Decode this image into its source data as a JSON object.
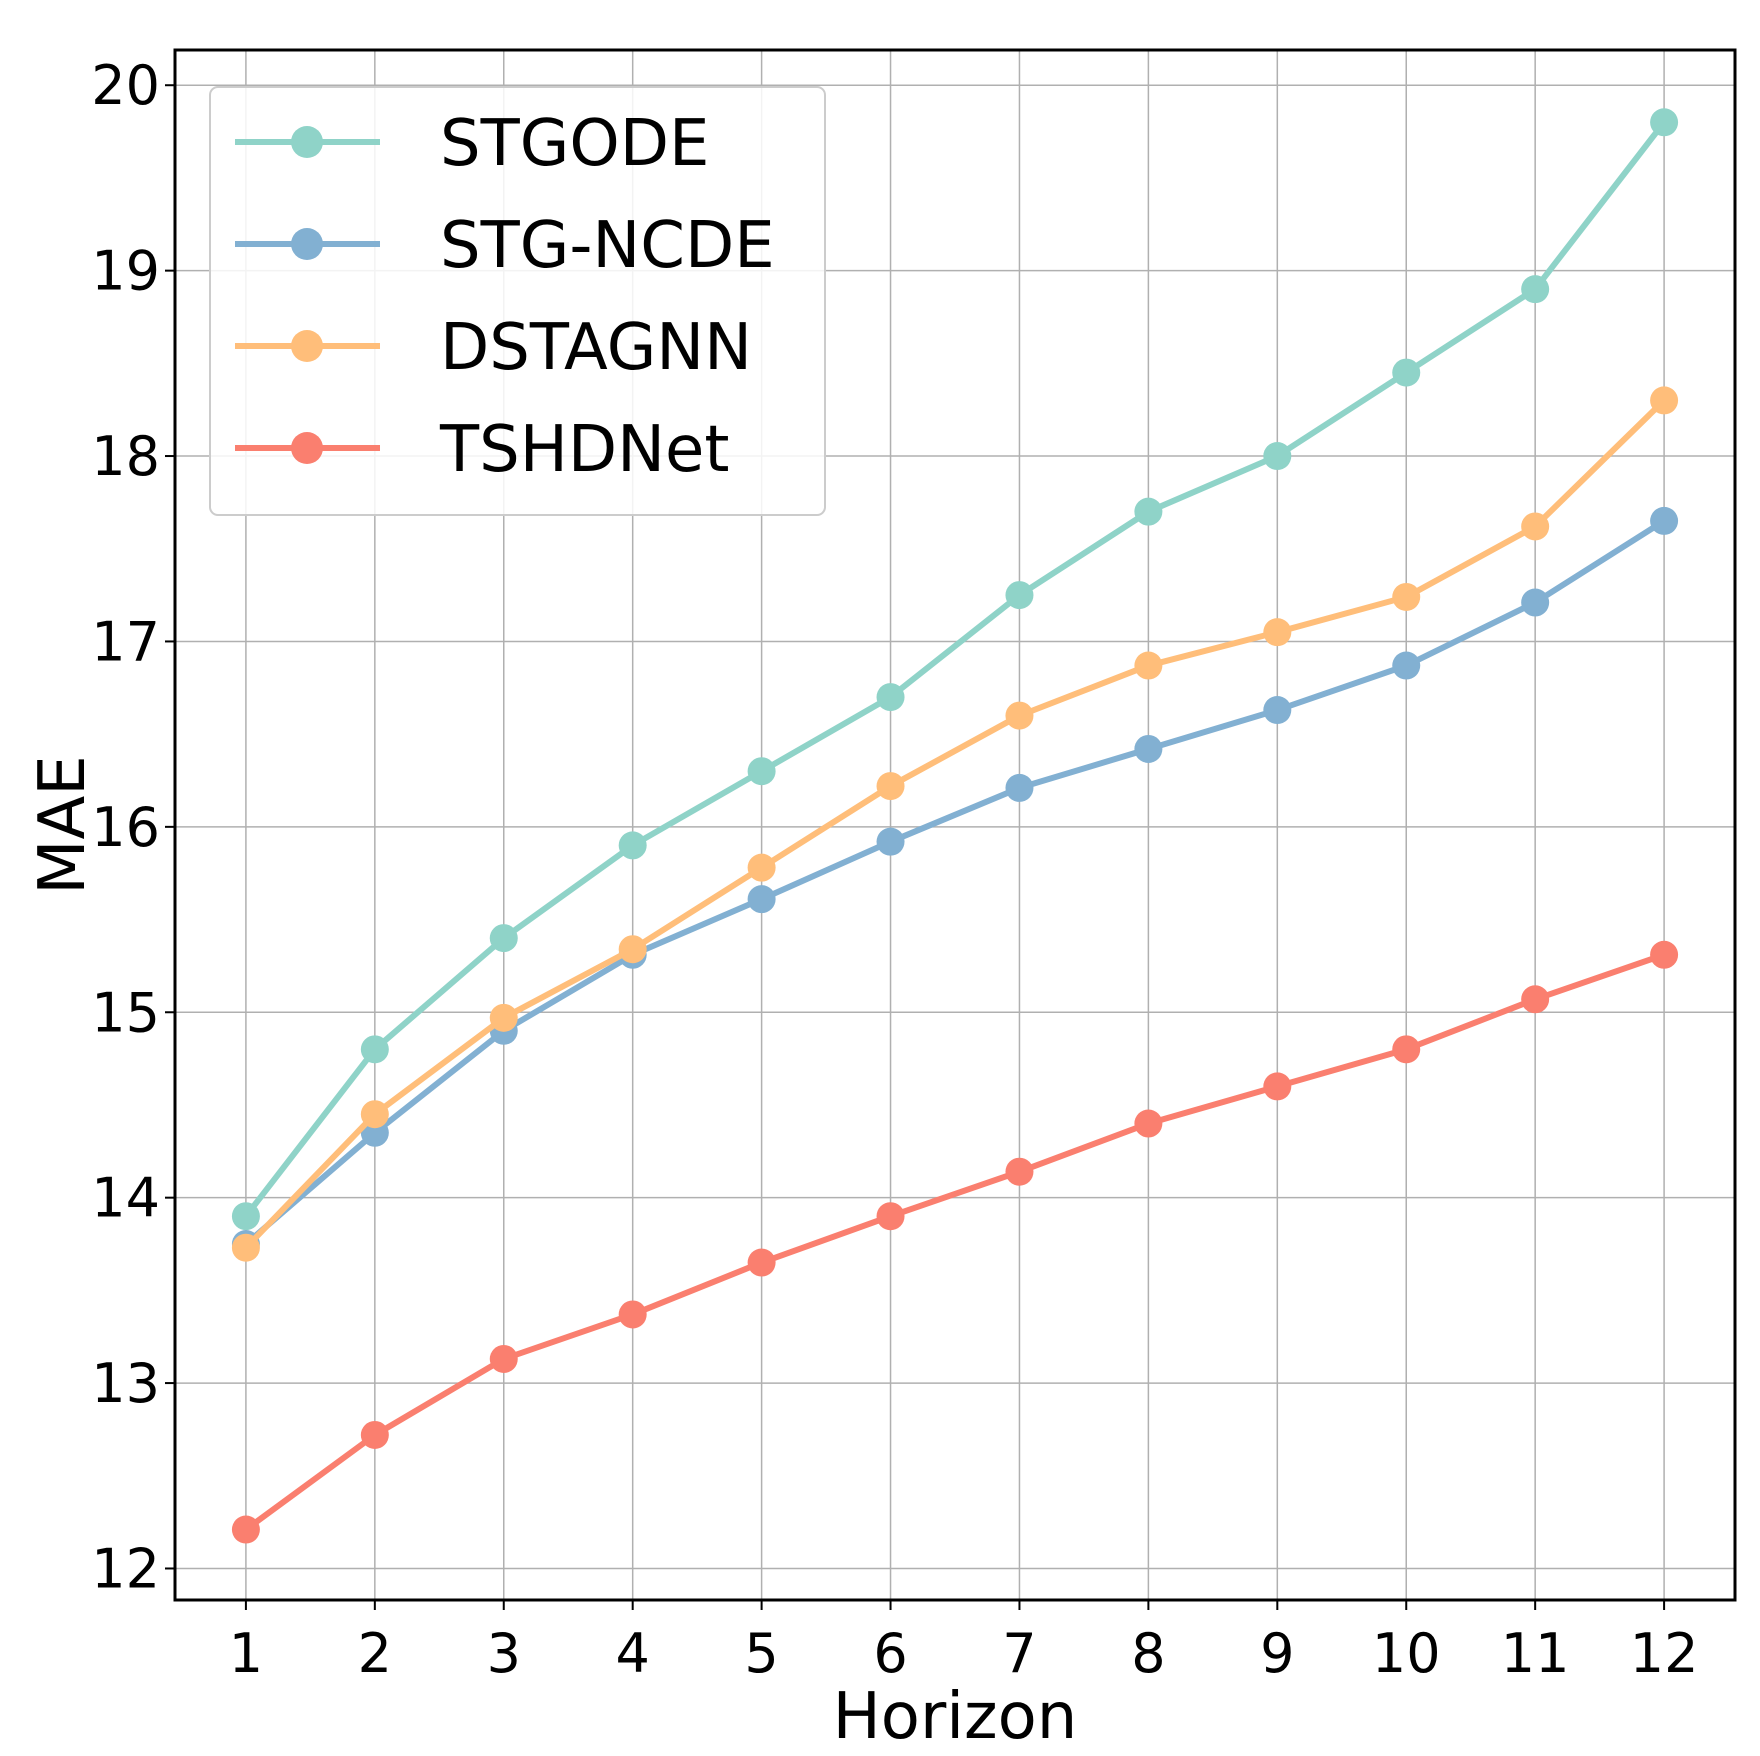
{
  "chart_data": {
    "type": "line",
    "title": "",
    "xlabel": "Horizon",
    "ylabel": "MAE",
    "x": [
      1,
      2,
      3,
      4,
      5,
      6,
      7,
      8,
      9,
      10,
      11,
      12
    ],
    "x_ticks": [
      "1",
      "2",
      "3",
      "4",
      "5",
      "6",
      "7",
      "8",
      "9",
      "10",
      "11",
      "12"
    ],
    "xlim": [
      0.45,
      12.55
    ],
    "ylim": [
      11.83,
      20.19
    ],
    "y_ticks": [
      12,
      13,
      14,
      15,
      16,
      17,
      18,
      19,
      20
    ],
    "grid": true,
    "legend_position": "top-left",
    "series": [
      {
        "name": "STGODE",
        "color": "#8fd3c8",
        "values": [
          13.9,
          14.8,
          15.4,
          15.9,
          16.3,
          16.7,
          17.25,
          17.7,
          18.0,
          18.45,
          18.9,
          19.8
        ]
      },
      {
        "name": "STG-NCDE",
        "color": "#82b0d2",
        "values": [
          13.75,
          14.35,
          14.9,
          15.31,
          15.61,
          15.92,
          16.21,
          16.42,
          16.63,
          16.87,
          17.21,
          17.65
        ]
      },
      {
        "name": "DSTAGNN",
        "color": "#ffbe7a",
        "values": [
          13.73,
          14.45,
          14.97,
          15.34,
          15.78,
          16.22,
          16.6,
          16.87,
          17.05,
          17.24,
          17.62,
          18.3
        ]
      },
      {
        "name": "TSHDNet",
        "color": "#fa7f6f",
        "values": [
          12.21,
          12.72,
          13.13,
          13.37,
          13.65,
          13.9,
          14.14,
          14.4,
          14.6,
          14.8,
          15.07,
          15.31
        ]
      }
    ]
  }
}
